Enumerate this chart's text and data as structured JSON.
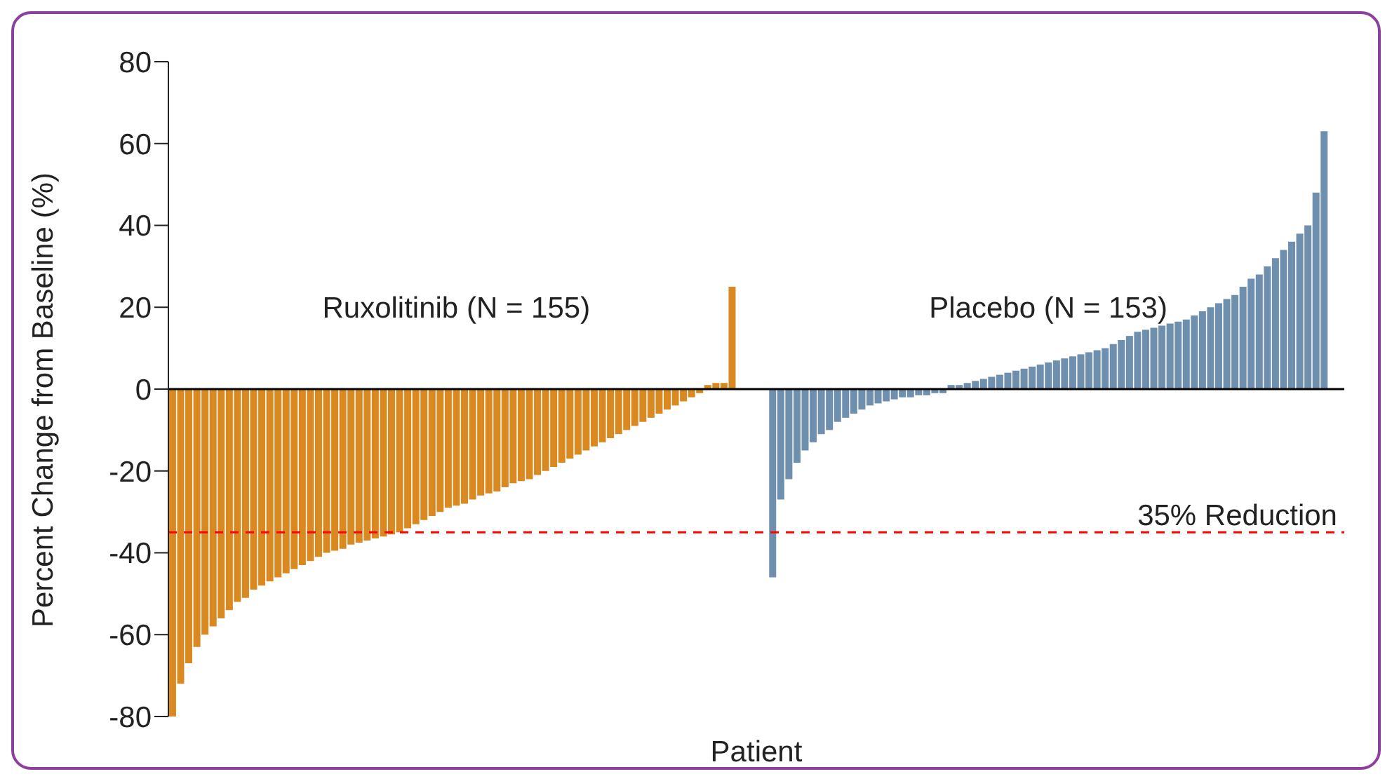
{
  "chart_data": {
    "type": "bar",
    "ylabel": "Percent Change from Baseline (%)",
    "xlabel": "Patient",
    "categories": [
      null,
      null,
      null,
      null,
      null,
      null,
      null,
      null,
      null,
      null,
      null,
      null,
      null,
      null,
      null,
      null,
      null,
      null,
      null,
      null,
      null,
      null,
      null,
      null,
      null,
      null,
      null,
      null,
      null,
      null,
      null,
      null,
      null,
      null,
      null,
      null,
      null,
      null,
      null,
      null,
      null,
      null,
      null,
      null,
      null,
      null,
      null,
      null,
      null,
      null,
      null,
      null,
      null,
      null,
      null,
      null,
      null,
      null,
      null,
      null,
      null,
      null,
      null,
      null,
      null,
      null,
      null,
      null,
      null,
      null,
      null,
      null,
      null,
      null,
      null,
      null,
      null,
      null,
      null,
      null,
      null,
      null,
      null,
      null,
      null,
      null,
      null,
      null,
      null,
      null,
      null,
      null,
      null,
      null,
      null,
      null,
      null,
      null,
      null,
      null,
      null,
      null,
      null,
      null,
      null,
      null,
      null,
      null,
      null,
      null,
      null,
      null,
      null,
      null,
      null,
      null,
      null,
      null,
      null,
      null,
      null,
      null,
      null,
      null,
      null,
      null,
      null,
      null,
      null,
      null,
      null,
      null,
      null,
      null,
      null,
      null,
      null,
      null,
      null,
      null,
      null,
      null,
      null,
      null,
      null
    ],
    "series": [
      {
        "name": "Ruxolitinib (N = 155)",
        "color": "#d9891f",
        "values": [
          -80,
          -72,
          -67,
          -63,
          -60,
          -58,
          -56,
          -54,
          -52,
          -51,
          -49,
          -48,
          -47,
          -46,
          -45,
          -44,
          -43,
          -42,
          -41,
          -40,
          -39.5,
          -39,
          -38,
          -37.5,
          -37,
          -36.5,
          -36,
          -35.5,
          -35,
          -34,
          -33,
          -32,
          -31,
          -30,
          -29,
          -28.5,
          -28,
          -27,
          -26,
          -25.5,
          -25,
          -24,
          -23,
          -22.5,
          -22,
          -21,
          -20,
          -19,
          -18,
          -17,
          -16,
          -15,
          -14,
          -13,
          -12,
          -11,
          -10,
          -9,
          -8,
          -7,
          -6,
          -5,
          -4,
          -3,
          -2,
          -1,
          1,
          1.5,
          1.5,
          25,
          null,
          null,
          null,
          null,
          null,
          null,
          null,
          null,
          null,
          null,
          null,
          null,
          null,
          null,
          null,
          null,
          null,
          null,
          null,
          null,
          null,
          null,
          null,
          null,
          null,
          null,
          null,
          null,
          null,
          null,
          null,
          null,
          null,
          null,
          null,
          null,
          null,
          null,
          null,
          null,
          null,
          null,
          null,
          null,
          null,
          null,
          null,
          null,
          null,
          null,
          null,
          null,
          null,
          null,
          null,
          null,
          null,
          null,
          null,
          null,
          null,
          null,
          null,
          null,
          null,
          null,
          null,
          null,
          null,
          null,
          null,
          null,
          null,
          null,
          null
        ]
      },
      {
        "name": "Placebo (N = 153)",
        "color": "#6f8fae",
        "values": [
          null,
          null,
          null,
          null,
          null,
          null,
          null,
          null,
          null,
          null,
          null,
          null,
          null,
          null,
          null,
          null,
          null,
          null,
          null,
          null,
          null,
          null,
          null,
          null,
          null,
          null,
          null,
          null,
          null,
          null,
          null,
          null,
          null,
          null,
          null,
          null,
          null,
          null,
          null,
          null,
          null,
          null,
          null,
          null,
          null,
          null,
          null,
          null,
          null,
          null,
          null,
          null,
          null,
          null,
          null,
          null,
          null,
          null,
          null,
          null,
          null,
          null,
          null,
          null,
          null,
          null,
          null,
          null,
          null,
          null,
          null,
          null,
          null,
          null,
          -46,
          -27,
          -22,
          -18,
          -15,
          -13,
          -11,
          -10,
          -8,
          -7,
          -6,
          -5,
          -4,
          -3.5,
          -3,
          -2.5,
          -2,
          -2,
          -1.5,
          -1.5,
          -1,
          -1,
          1,
          1,
          1.5,
          2,
          2.5,
          3,
          3.5,
          4,
          4.5,
          5,
          5.5,
          6,
          6.5,
          7,
          7.5,
          8,
          8.5,
          9,
          9.5,
          10,
          11,
          12,
          13,
          14,
          14.5,
          15,
          15.5,
          16,
          16.5,
          17,
          18,
          19,
          20,
          21,
          22,
          23,
          25,
          27,
          28,
          30,
          32,
          34,
          36,
          38,
          40,
          48,
          63,
          null,
          null
        ]
      }
    ],
    "ylim": [
      -80,
      80
    ],
    "yticks": [
      -80,
      -60,
      -40,
      -20,
      0,
      20,
      40,
      60,
      80
    ],
    "grid": false,
    "legend": false,
    "tick_labels": "y",
    "ref_lines": [
      {
        "axis": "y",
        "value": 0,
        "color": "#000000",
        "line_style": "solid"
      },
      {
        "axis": "y",
        "value": -35,
        "label": "35% Reduction",
        "color": "#ff0000",
        "line_style": "dashed"
      }
    ]
  }
}
